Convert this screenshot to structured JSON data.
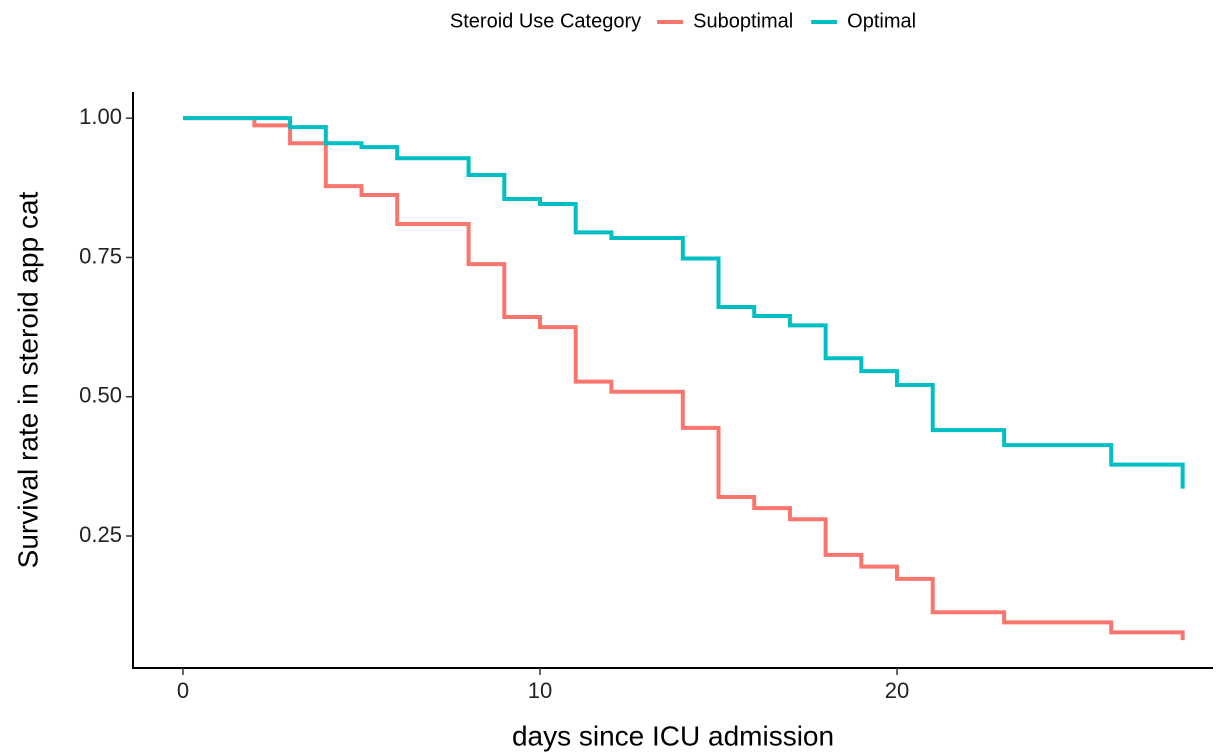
{
  "chart_data": {
    "type": "step",
    "xlabel": "days since ICU admission",
    "ylabel": "Survival rate in steroid app cat",
    "legend_title": "Steroid Use Category",
    "legend_position": "top",
    "xlim": [
      -1.4,
      28.85
    ],
    "xticks": [
      0,
      10,
      20
    ],
    "ylim": [
      0.013,
      1.047
    ],
    "yticks": [
      {
        "value": 0.25,
        "label": "0.25"
      },
      {
        "value": 0.5,
        "label": "0.50"
      },
      {
        "value": 0.75,
        "label": "0.75"
      },
      {
        "value": 1,
        "label": "1.00"
      }
    ],
    "series": [
      {
        "name": "Suboptimal",
        "color": "#F8766D",
        "x": [
          0,
          2,
          3,
          4,
          5,
          6,
          8,
          9,
          10,
          11,
          12,
          14,
          15,
          16,
          17,
          18,
          19,
          20,
          21,
          23,
          26,
          28
        ],
        "values": [
          1.0,
          0.987,
          0.955,
          0.878,
          0.862,
          0.81,
          0.738,
          0.643,
          0.625,
          0.527,
          0.509,
          0.444,
          0.32,
          0.3,
          0.28,
          0.216,
          0.195,
          0.173,
          0.113,
          0.095,
          0.077,
          0.063
        ]
      },
      {
        "name": "Optimal",
        "color": "#00BFC4",
        "x": [
          0,
          3,
          4,
          5,
          6,
          8,
          9,
          10,
          11,
          12,
          14,
          15,
          16,
          17,
          18,
          19,
          20,
          21,
          23,
          26,
          28
        ],
        "values": [
          1.0,
          0.984,
          0.955,
          0.948,
          0.928,
          0.898,
          0.855,
          0.846,
          0.795,
          0.785,
          0.748,
          0.661,
          0.645,
          0.628,
          0.569,
          0.546,
          0.521,
          0.44,
          0.413,
          0.378,
          0.335
        ]
      }
    ]
  }
}
